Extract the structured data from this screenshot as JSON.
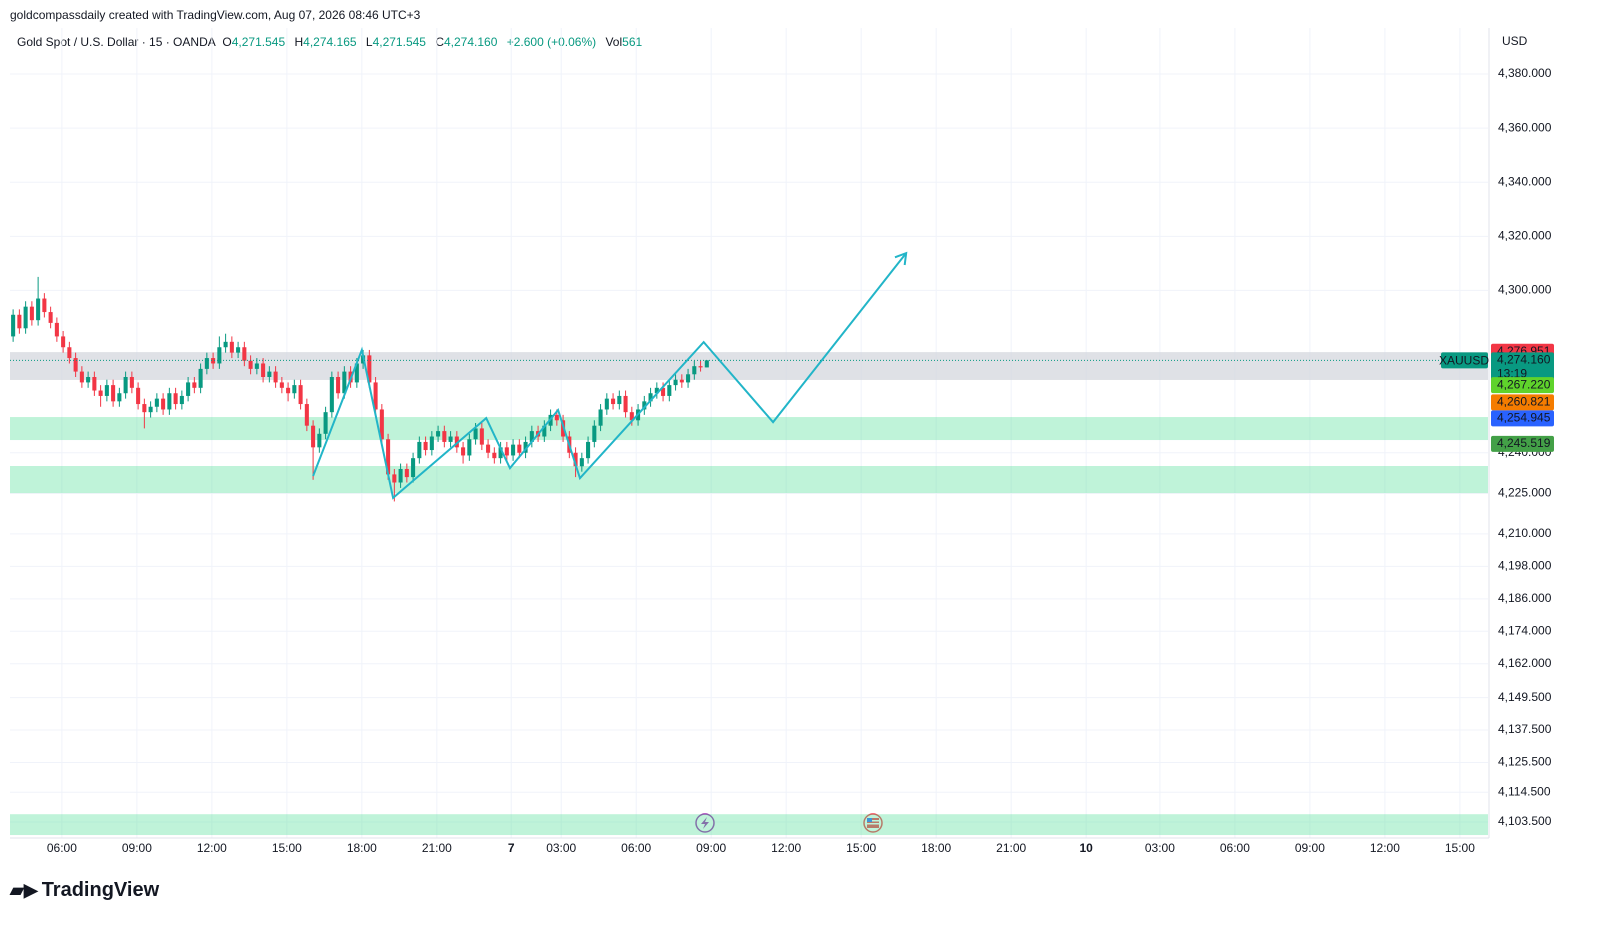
{
  "header": {
    "credit": "goldcompassdaily created with TradingView.com, Aug 07, 2026 08:46 UTC+3",
    "symbol": "Gold Spot / U.S. Dollar · 15 · OANDA",
    "ohlc": [
      {
        "key": "O",
        "value": "4,271.545"
      },
      {
        "key": "H",
        "value": "4,274.165"
      },
      {
        "key": "L",
        "value": "4,271.545"
      },
      {
        "key": "C",
        "value": "4,274.160"
      }
    ],
    "change": "+2.600 (+0.06%)",
    "volume_key": "Vol",
    "volume": "561"
  },
  "watermark": "TradingView",
  "chart_data": {
    "type": "candlestick",
    "currency": "USD",
    "up_color": "#089981",
    "down_color": "#f23645",
    "xlim": [
      -0.5,
      236
    ],
    "xticks": [
      {
        "value": 7.8,
        "label": "06:00"
      },
      {
        "value": 19.8,
        "label": "09:00"
      },
      {
        "value": 31.8,
        "label": "12:00"
      },
      {
        "value": 43.8,
        "label": "15:00"
      },
      {
        "value": 55.8,
        "label": "18:00"
      },
      {
        "value": 67.8,
        "label": "21:00"
      },
      {
        "value": 79.7,
        "label": "7"
      },
      {
        "value": 87.7,
        "label": "03:00"
      },
      {
        "value": 99.7,
        "label": "06:00"
      },
      {
        "value": 111.7,
        "label": "09:00"
      },
      {
        "value": 123.7,
        "label": "12:00"
      },
      {
        "value": 135.7,
        "label": "15:00"
      },
      {
        "value": 147.7,
        "label": "18:00"
      },
      {
        "value": 159.7,
        "label": "21:00"
      },
      {
        "value": 171.7,
        "label": "10"
      },
      {
        "value": 183.5,
        "label": "03:00"
      },
      {
        "value": 195.5,
        "label": "06:00"
      },
      {
        "value": 207.5,
        "label": "09:00"
      },
      {
        "value": 219.5,
        "label": "12:00"
      },
      {
        "value": 231.5,
        "label": "15:00"
      }
    ],
    "ylim": [
      4097.6,
      4397.0
    ],
    "yticks": [
      {
        "value": 4380,
        "label": "4,380.000"
      },
      {
        "value": 4360,
        "label": "4,360.000"
      },
      {
        "value": 4340,
        "label": "4,340.000"
      },
      {
        "value": 4320,
        "label": "4,320.000"
      },
      {
        "value": 4300,
        "label": "4,300.000"
      },
      {
        "value": 4240,
        "label": "4,240.000"
      },
      {
        "value": 4225,
        "label": "4,225.000"
      },
      {
        "value": 4210,
        "label": "4,210.000"
      },
      {
        "value": 4198,
        "label": "4,198.000"
      },
      {
        "value": 4186,
        "label": "4,186.000"
      },
      {
        "value": 4174,
        "label": "4,174.000"
      },
      {
        "value": 4162,
        "label": "4,162.000"
      },
      {
        "value": 4149.5,
        "label": "4,149.500"
      },
      {
        "value": 4137.5,
        "label": "4,137.500"
      },
      {
        "value": 4125.5,
        "label": "4,125.500"
      },
      {
        "value": 4114.5,
        "label": "4,114.500"
      },
      {
        "value": 4103.5,
        "label": "4,103.500"
      }
    ],
    "grid": true,
    "x": [
      0,
      1,
      2,
      3,
      4,
      5,
      6,
      7,
      8,
      9,
      10,
      11,
      12,
      13,
      14,
      15,
      16,
      17,
      18,
      19,
      20,
      21,
      22,
      23,
      24,
      25,
      26,
      27,
      28,
      29,
      30,
      31,
      32,
      33,
      34,
      35,
      36,
      37,
      38,
      39,
      40,
      41,
      42,
      43,
      44,
      45,
      46,
      47,
      48,
      49,
      50,
      51,
      52,
      53,
      54,
      55,
      56,
      57,
      58,
      59,
      60,
      61,
      62,
      63,
      64,
      65,
      66,
      67,
      68,
      69,
      70,
      71,
      72,
      73,
      74,
      75,
      76,
      77,
      78,
      79,
      80,
      81,
      82,
      83,
      84,
      85,
      86,
      87,
      88,
      89,
      90,
      91,
      92,
      93,
      94,
      95,
      96,
      97,
      98,
      99,
      100,
      101,
      102,
      103,
      104,
      105,
      106,
      107,
      108,
      109,
      110,
      111
    ],
    "open": [
      4283,
      4291,
      4286,
      4294,
      4289,
      4297,
      4292,
      4288,
      4283,
      4279,
      4275,
      4270,
      4266,
      4268,
      4263,
      4261,
      4265,
      4259,
      4262,
      4268,
      4264,
      4258,
      4255,
      4257,
      4260,
      4256,
      4262,
      4258,
      4261,
      4266,
      4264,
      4271,
      4275,
      4273,
      4279,
      4281,
      4277,
      4279,
      4274,
      4271,
      4273,
      4268,
      4270,
      4266,
      4264,
      4262,
      4265,
      4258,
      4250,
      4242,
      4247,
      4255,
      4268,
      4262,
      4270,
      4266,
      4273,
      4276,
      4266,
      4256,
      4245,
      4232,
      4229,
      4234,
      4231,
      4238,
      4244,
      4241,
      4246,
      4248,
      4244,
      4246,
      4242,
      4239,
      4245,
      4249,
      4243,
      4240,
      4238,
      4242,
      4239,
      4243,
      4240,
      4244,
      4248,
      4246,
      4250,
      4254,
      4252,
      4246,
      4240,
      4235,
      4238,
      4244,
      4250,
      4256,
      4260,
      4258,
      4261,
      4255,
      4252,
      4256,
      4259,
      4262,
      4264,
      4261,
      4265,
      4267,
      4266,
      4269,
      4272,
      4271.545
    ],
    "high": [
      4293,
      4293,
      4296,
      4296,
      4305,
      4299,
      4294,
      4290,
      4285,
      4281,
      4277,
      4272,
      4270,
      4270,
      4265,
      4267,
      4267,
      4264,
      4270,
      4270,
      4266,
      4260,
      4259,
      4262,
      4262,
      4264,
      4264,
      4263,
      4268,
      4268,
      4273,
      4277,
      4277,
      4283,
      4284,
      4283,
      4281,
      4281,
      4276,
      4275,
      4275,
      4272,
      4272,
      4268,
      4266,
      4267,
      4267,
      4260,
      4252,
      4249,
      4257,
      4270,
      4270,
      4272,
      4272,
      4275,
      4278,
      4278,
      4268,
      4258,
      4247,
      4234,
      4236,
      4236,
      4240,
      4246,
      4246,
      4248,
      4250,
      4250,
      4248,
      4248,
      4244,
      4247,
      4251,
      4251,
      4245,
      4242,
      4244,
      4244,
      4245,
      4245,
      4246,
      4250,
      4250,
      4252,
      4256,
      4256,
      4254,
      4248,
      4242,
      4240,
      4246,
      4252,
      4258,
      4262,
      4262,
      4263,
      4263,
      4257,
      4258,
      4261,
      4264,
      4266,
      4266,
      4267,
      4269,
      4269,
      4271,
      4274,
      4274,
      4274.165
    ],
    "low": [
      4281,
      4284,
      4284,
      4287,
      4287,
      4290,
      4286,
      4281,
      4277,
      4273,
      4268,
      4264,
      4264,
      4261,
      4257,
      4259,
      4257,
      4257,
      4260,
      4262,
      4256,
      4249,
      4253,
      4255,
      4254,
      4254,
      4256,
      4256,
      4259,
      4262,
      4262,
      4269,
      4271,
      4271,
      4277,
      4275,
      4275,
      4272,
      4269,
      4269,
      4266,
      4266,
      4264,
      4262,
      4259,
      4260,
      4256,
      4248,
      4230,
      4240,
      4245,
      4253,
      4260,
      4260,
      4264,
      4264,
      4271,
      4264,
      4254,
      4243,
      4230,
      4222,
      4227,
      4229,
      4229,
      4236,
      4239,
      4239,
      4244,
      4242,
      4242,
      4240,
      4236,
      4237,
      4243,
      4241,
      4238,
      4236,
      4236,
      4237,
      4237,
      4238,
      4238,
      4242,
      4244,
      4244,
      4248,
      4250,
      4244,
      4238,
      4231,
      4233,
      4236,
      4242,
      4248,
      4254,
      4256,
      4256,
      4253,
      4250,
      4250,
      4254,
      4257,
      4260,
      4259,
      4259,
      4263,
      4264,
      4264,
      4267,
      4270,
      4271.545
    ],
    "close": [
      4291,
      4286,
      4294,
      4289,
      4297,
      4292,
      4288,
      4283,
      4279,
      4275,
      4270,
      4266,
      4268,
      4263,
      4261,
      4265,
      4259,
      4262,
      4268,
      4264,
      4258,
      4255,
      4257,
      4260,
      4256,
      4262,
      4258,
      4261,
      4266,
      4264,
      4271,
      4275,
      4273,
      4279,
      4281,
      4277,
      4279,
      4274,
      4271,
      4273,
      4268,
      4270,
      4266,
      4264,
      4262,
      4265,
      4258,
      4250,
      4242,
      4247,
      4255,
      4268,
      4262,
      4270,
      4266,
      4273,
      4276,
      4266,
      4256,
      4245,
      4232,
      4229,
      4234,
      4231,
      4238,
      4244,
      4241,
      4246,
      4248,
      4244,
      4246,
      4242,
      4239,
      4245,
      4249,
      4243,
      4240,
      4238,
      4242,
      4239,
      4243,
      4240,
      4244,
      4248,
      4246,
      4250,
      4254,
      4252,
      4246,
      4240,
      4235,
      4238,
      4244,
      4250,
      4256,
      4260,
      4258,
      4261,
      4255,
      4252,
      4256,
      4259,
      4262,
      4264,
      4261,
      4265,
      4267,
      4266,
      4269,
      4272,
      4271.545,
      4274.16
    ],
    "zones": [
      {
        "from": 4277.2,
        "to": 4266.9,
        "color": "#d1d4dc"
      },
      {
        "from": 4253.2,
        "to": 4244.7,
        "color": "#5ee0a0"
      },
      {
        "from": 4235.1,
        "to": 4225.1,
        "color": "#5ee0a0"
      },
      {
        "from": 4106.4,
        "to": 4098.7,
        "color": "#5ee0a0"
      }
    ],
    "path": {
      "color": "#22b5c8",
      "x": [
        48.0,
        55.8,
        60.8,
        75.7,
        79.5,
        87.2,
        90.7,
        110.5,
        121.6,
        142.9
      ],
      "y": [
        4231.4,
        4278.0,
        4223.3,
        4252.8,
        4234.3,
        4255.8,
        4230.6,
        4280.9,
        4251.3,
        4313.8
      ]
    },
    "price_labels": [
      {
        "value": 4276.951,
        "label": "4,276.951",
        "color": "#f23645"
      },
      {
        "value": 4274.16,
        "label": "4,274.160",
        "name": "XAUUSD",
        "countdown": "13:19",
        "color": "#089981"
      },
      {
        "value": 4267.22,
        "label": "4,267.220",
        "color": "#5fd32b"
      },
      {
        "value": 4260.821,
        "label": "4,260.821",
        "color": "#f57c00"
      },
      {
        "value": 4254.945,
        "label": "4,254.945",
        "color": "#2962ff"
      },
      {
        "value": 4245.519,
        "label": "4,245.519",
        "color": "#43a047"
      }
    ]
  }
}
